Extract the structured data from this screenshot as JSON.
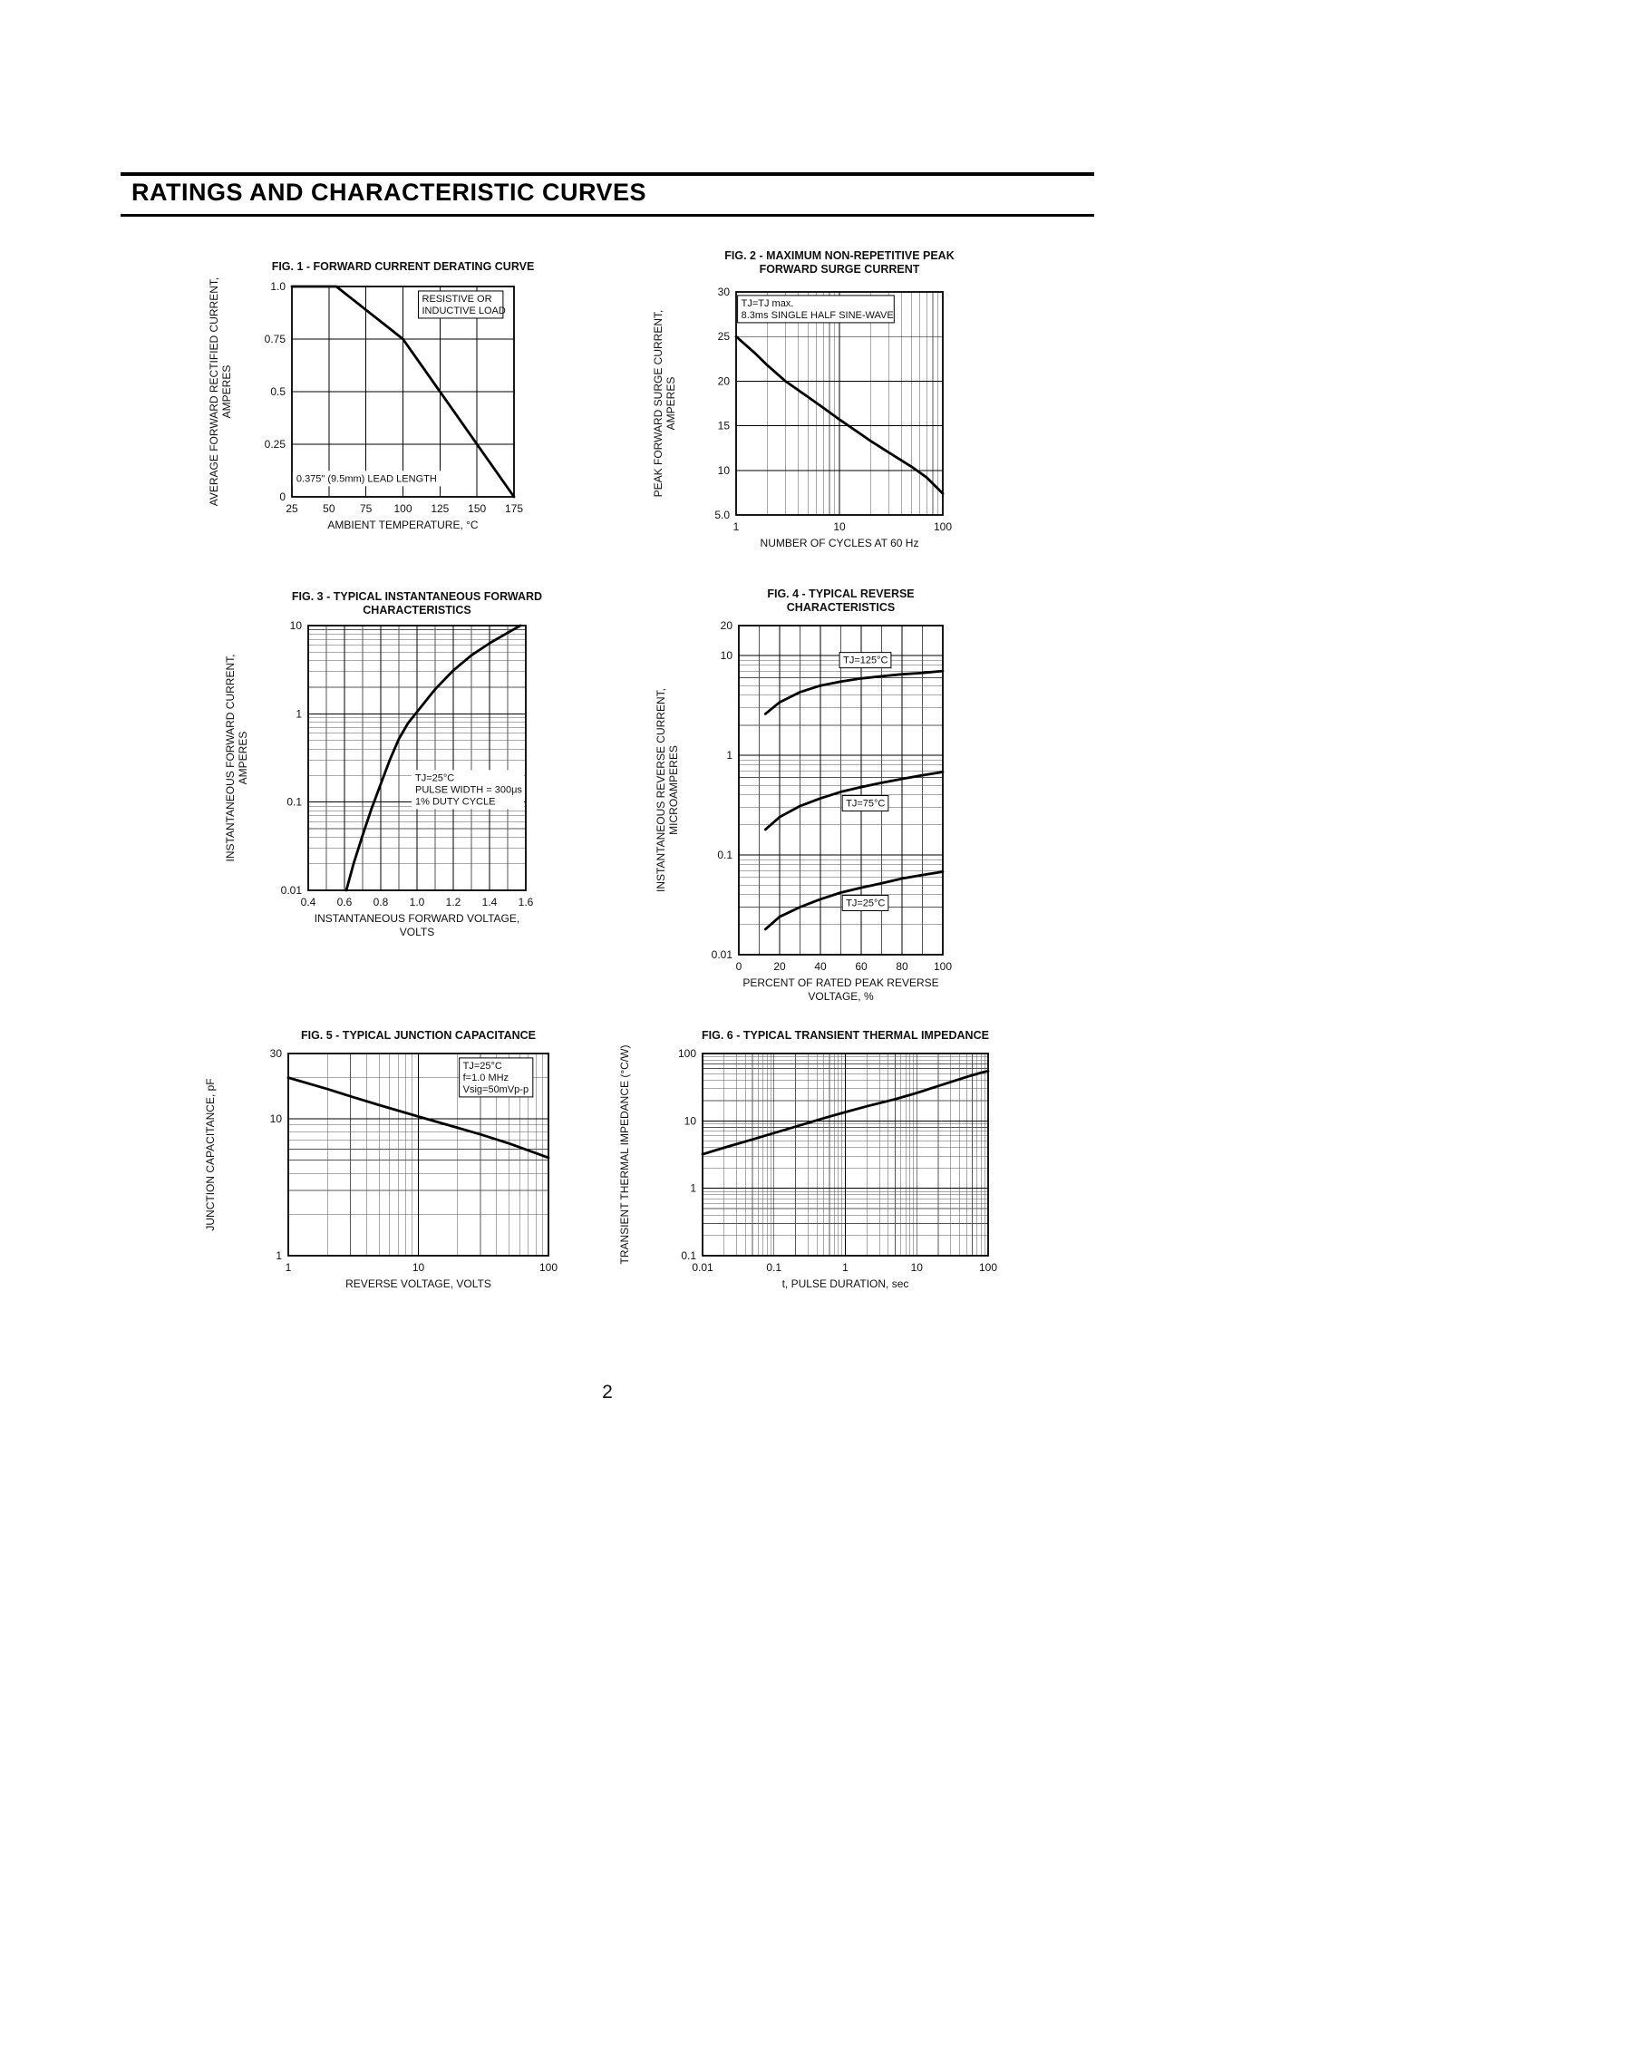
{
  "page": {
    "header_title": "RATINGS AND CHARACTERISTIC CURVES",
    "page_number": "2"
  },
  "chart_data": [
    {
      "type": "line",
      "title": [
        "FIG. 1 -  FORWARD CURRENT DERATING CURVE"
      ],
      "xlabel": [
        "AMBIENT TEMPERATURE, °C"
      ],
      "ylabel": [
        "AVERAGE FORWARD RECTIFIED CURRENT,",
        "AMPERES"
      ],
      "xscale": "linear",
      "yscale": "linear",
      "xlim": [
        25,
        175
      ],
      "ylim": [
        0,
        1.0
      ],
      "xticks": [
        [
          25,
          "25"
        ],
        [
          50,
          "50"
        ],
        [
          75,
          "75"
        ],
        [
          100,
          "100"
        ],
        [
          125,
          "125"
        ],
        [
          150,
          "150"
        ],
        [
          175,
          "175"
        ]
      ],
      "yticks": [
        [
          0,
          "0"
        ],
        [
          0.25,
          "0.25"
        ],
        [
          0.5,
          "0.5"
        ],
        [
          0.75,
          "0.75"
        ],
        [
          1.0,
          "1.0"
        ]
      ],
      "series": [
        {
          "name": "forward-current-derating",
          "points": [
            [
              25,
              1.0
            ],
            [
              55,
              1.0
            ],
            [
              100,
              0.75
            ],
            [
              175,
              0.0
            ]
          ]
        }
      ],
      "annotations": [
        {
          "lines": [
            "RESISTIVE OR",
            "INDUCTIVE LOAD"
          ],
          "x": 139,
          "y": 0.97,
          "anchor": "middle",
          "valign": "top",
          "box": true
        },
        {
          "lines": [
            "0.375\" (9.5mm) LEAD LENGTH"
          ],
          "x": 28,
          "y": 0.115,
          "anchor": "start",
          "valign": "top",
          "box": false,
          "bg": true
        }
      ]
    },
    {
      "type": "line",
      "title": [
        "FIG. 2 - MAXIMUM NON-REPETITIVE PEAK",
        "FORWARD SURGE CURRENT"
      ],
      "xlabel": [
        "NUMBER OF CYCLES AT 60 Hz"
      ],
      "ylabel": [
        "PEAK FORWARD SURGE CURRENT,",
        "AMPERES"
      ],
      "xscale": "log",
      "yscale": "linear",
      "xlim": [
        1,
        100
      ],
      "ylim": [
        5,
        30
      ],
      "xticks": [
        [
          1,
          "1"
        ],
        [
          10,
          "10"
        ],
        [
          100,
          "100"
        ]
      ],
      "yticks": [
        [
          5,
          "5.0"
        ],
        [
          10,
          "10"
        ],
        [
          15,
          "15"
        ],
        [
          20,
          "20"
        ],
        [
          25,
          "25"
        ],
        [
          30,
          "30"
        ]
      ],
      "series": [
        {
          "name": "peak-surge-current",
          "points": [
            [
              1,
              25
            ],
            [
              1.5,
              23.2
            ],
            [
              2,
              21.8
            ],
            [
              3,
              20.0
            ],
            [
              5,
              18.2
            ],
            [
              7,
              17.0
            ],
            [
              10,
              15.7
            ],
            [
              15,
              14.3
            ],
            [
              20,
              13.3
            ],
            [
              30,
              12.0
            ],
            [
              50,
              10.4
            ],
            [
              70,
              9.2
            ],
            [
              100,
              7.4
            ]
          ]
        }
      ],
      "annotations": [
        {
          "lines": [
            "TJ=TJ max.",
            "8.3ms SINGLE HALF SINE-WAVE"
          ],
          "x": 1.12,
          "y": 29.4,
          "anchor": "start",
          "valign": "top",
          "box": true
        }
      ]
    },
    {
      "type": "line",
      "title": [
        "FIG. 3 - TYPICAL INSTANTANEOUS FORWARD",
        "CHARACTERISTICS"
      ],
      "xlabel": [
        "INSTANTANEOUS FORWARD VOLTAGE,",
        "VOLTS"
      ],
      "ylabel": [
        "INSTANTANEOUS FORWARD CURRENT,",
        "AMPERES"
      ],
      "xscale": "linear",
      "yscale": "log",
      "xlim": [
        0.4,
        1.6
      ],
      "ylim": [
        0.01,
        10
      ],
      "xminor_step": 0.1,
      "xticks": [
        [
          0.4,
          "0.4"
        ],
        [
          0.6,
          "0.6"
        ],
        [
          0.8,
          "0.8"
        ],
        [
          1.0,
          "1.0"
        ],
        [
          1.2,
          "1.2"
        ],
        [
          1.4,
          "1.4"
        ],
        [
          1.6,
          "1.6"
        ]
      ],
      "yticks": [
        [
          0.01,
          "0.01"
        ],
        [
          0.1,
          "0.1"
        ],
        [
          1,
          "1"
        ],
        [
          10,
          "10"
        ]
      ],
      "series": [
        {
          "name": "instantaneous-forward-characteristic",
          "points": [
            [
              0.61,
              0.01
            ],
            [
              0.65,
              0.02
            ],
            [
              0.7,
              0.042
            ],
            [
              0.75,
              0.085
            ],
            [
              0.8,
              0.16
            ],
            [
              0.85,
              0.3
            ],
            [
              0.9,
              0.52
            ],
            [
              0.95,
              0.78
            ],
            [
              1.0,
              1.05
            ],
            [
              1.1,
              1.9
            ],
            [
              1.2,
              3.1
            ],
            [
              1.3,
              4.6
            ],
            [
              1.4,
              6.3
            ],
            [
              1.5,
              8.3
            ],
            [
              1.57,
              10
            ]
          ]
        }
      ],
      "annotations": [
        {
          "lines": [
            "TJ=25°C",
            "PULSE WIDTH = 300μs",
            "1% DUTY CYCLE"
          ],
          "x": 0.99,
          "y": 0.22,
          "anchor": "start",
          "valign": "top",
          "box": false,
          "bg": true
        }
      ]
    },
    {
      "type": "line",
      "title": [
        "FIG. 4 - TYPICAL REVERSE",
        "CHARACTERISTICS"
      ],
      "xlabel": [
        "PERCENT OF RATED PEAK REVERSE",
        "VOLTAGE, %"
      ],
      "ylabel": [
        "INSTANTANEOUS REVERSE  CURRENT,",
        "MICROAMPERES"
      ],
      "xscale": "linear",
      "yscale": "log",
      "xlim": [
        0,
        100
      ],
      "ylim": [
        0.01,
        20
      ],
      "xminor_step": 10,
      "xticks": [
        [
          0,
          "0"
        ],
        [
          20,
          "20"
        ],
        [
          40,
          "40"
        ],
        [
          60,
          "60"
        ],
        [
          80,
          "80"
        ],
        [
          100,
          "100"
        ]
      ],
      "yticks": [
        [
          20,
          "20"
        ],
        [
          10,
          "10"
        ],
        [
          1,
          "1"
        ],
        [
          0.1,
          "0.1"
        ],
        [
          0.01,
          "0.01"
        ]
      ],
      "series": [
        {
          "name": "reverse-current-tj-125c",
          "points": [
            [
              13,
              2.6
            ],
            [
              20,
              3.4
            ],
            [
              30,
              4.3
            ],
            [
              40,
              5.0
            ],
            [
              50,
              5.5
            ],
            [
              60,
              5.9
            ],
            [
              70,
              6.2
            ],
            [
              80,
              6.5
            ],
            [
              90,
              6.7
            ],
            [
              100,
              7.0
            ]
          ]
        },
        {
          "name": "reverse-current-tj-75c",
          "points": [
            [
              13,
              0.18
            ],
            [
              20,
              0.24
            ],
            [
              30,
              0.31
            ],
            [
              40,
              0.37
            ],
            [
              50,
              0.43
            ],
            [
              60,
              0.48
            ],
            [
              70,
              0.53
            ],
            [
              80,
              0.58
            ],
            [
              90,
              0.63
            ],
            [
              100,
              0.68
            ]
          ]
        },
        {
          "name": "reverse-current-tj-25c",
          "points": [
            [
              13,
              0.018
            ],
            [
              20,
              0.024
            ],
            [
              30,
              0.03
            ],
            [
              40,
              0.036
            ],
            [
              50,
              0.042
            ],
            [
              60,
              0.047
            ],
            [
              70,
              0.052
            ],
            [
              80,
              0.058
            ],
            [
              90,
              0.063
            ],
            [
              100,
              0.068
            ]
          ]
        }
      ],
      "annotations": [
        {
          "lines": [
            "TJ=125°C"
          ],
          "x": 62,
          "y": 9.0,
          "anchor": "middle",
          "valign": "middle",
          "box": true
        },
        {
          "lines": [
            "TJ=75°C"
          ],
          "x": 62,
          "y": 0.33,
          "anchor": "middle",
          "valign": "middle",
          "box": true
        },
        {
          "lines": [
            "TJ=25°C"
          ],
          "x": 62,
          "y": 0.033,
          "anchor": "middle",
          "valign": "middle",
          "box": true
        }
      ]
    },
    {
      "type": "line",
      "title": [
        "FIG. 5 - TYPICAL JUNCTION CAPACITANCE"
      ],
      "xlabel": [
        "REVERSE VOLTAGE, VOLTS"
      ],
      "ylabel": [
        "JUNCTION CAPACITANCE, pF"
      ],
      "xscale": "log",
      "yscale": "log",
      "xlim": [
        1,
        100
      ],
      "ylim": [
        1,
        30
      ],
      "xticks": [
        [
          1,
          "1"
        ],
        [
          10,
          "10"
        ],
        [
          100,
          "100"
        ]
      ],
      "yticks": [
        [
          1,
          "1"
        ],
        [
          10,
          "10"
        ],
        [
          30,
          "30"
        ]
      ],
      "series": [
        {
          "name": "junction-capacitance",
          "points": [
            [
              1,
              20
            ],
            [
              2,
              16.5
            ],
            [
              3,
              14.6
            ],
            [
              5,
              12.6
            ],
            [
              10,
              10.4
            ],
            [
              20,
              8.6
            ],
            [
              30,
              7.7
            ],
            [
              50,
              6.6
            ],
            [
              100,
              5.2
            ]
          ]
        }
      ],
      "annotations": [
        {
          "lines": [
            "TJ=25°C",
            "f=1.0 MHz",
            "Vsig=50mVp-p"
          ],
          "x": 22,
          "y": 27,
          "anchor": "start",
          "valign": "top",
          "box": true
        }
      ]
    },
    {
      "type": "line",
      "title": [
        "FIG. 6 - TYPICAL TRANSIENT THERMAL IMPEDANCE"
      ],
      "xlabel": [
        "t, PULSE DURATION, sec"
      ],
      "ylabel": [
        "TRANSIENT THERMAL IMPEDANCE (°C/W)"
      ],
      "xscale": "log",
      "yscale": "log",
      "xlim": [
        0.01,
        100
      ],
      "ylim": [
        0.1,
        100
      ],
      "xticks": [
        [
          0.01,
          "0.01"
        ],
        [
          0.1,
          "0.1"
        ],
        [
          1,
          "1"
        ],
        [
          10,
          "10"
        ],
        [
          100,
          "100"
        ]
      ],
      "yticks": [
        [
          0.1,
          "0.1"
        ],
        [
          1,
          "1"
        ],
        [
          10,
          "10"
        ],
        [
          100,
          "100"
        ]
      ],
      "series": [
        {
          "name": "transient-thermal-impedance",
          "points": [
            [
              0.01,
              3.2
            ],
            [
              0.02,
              4.0
            ],
            [
              0.05,
              5.3
            ],
            [
              0.1,
              6.6
            ],
            [
              0.2,
              8.2
            ],
            [
              0.5,
              11.0
            ],
            [
              1,
              13.5
            ],
            [
              2,
              16.5
            ],
            [
              5,
              21.0
            ],
            [
              10,
              26.0
            ],
            [
              20,
              33.0
            ],
            [
              50,
              45.0
            ],
            [
              80,
              52.0
            ],
            [
              100,
              55.0
            ]
          ]
        }
      ],
      "annotations": []
    }
  ]
}
